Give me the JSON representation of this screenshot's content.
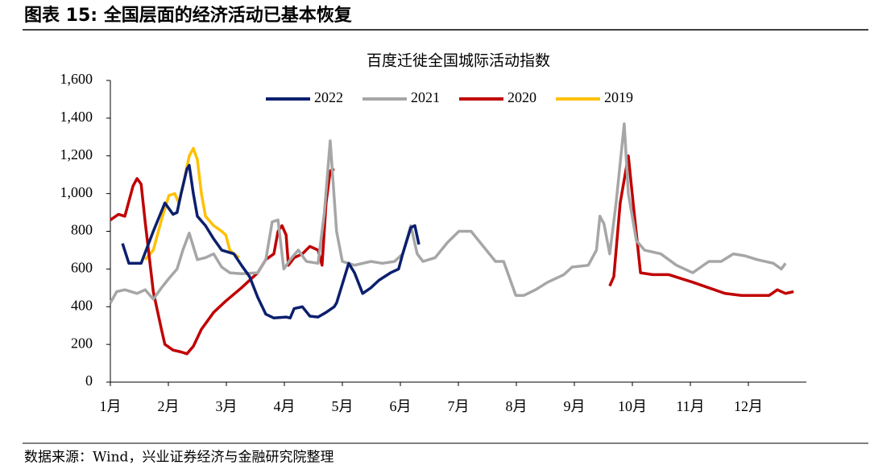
{
  "header": {
    "title": "图表 15:  全国层面的经济活动已基本恢复"
  },
  "footer": {
    "source": "数据来源：Wind，兴业证券经济与金融研究院整理"
  },
  "chart_data": {
    "type": "line",
    "title": "百度迁徙全国城际活动指数",
    "xlim": [
      0,
      12
    ],
    "xticks": [
      {
        "value": 0,
        "label": "1月"
      },
      {
        "value": 1,
        "label": "2月"
      },
      {
        "value": 2,
        "label": "3月"
      },
      {
        "value": 3,
        "label": "4月"
      },
      {
        "value": 4,
        "label": "5月"
      },
      {
        "value": 5,
        "label": "6月"
      },
      {
        "value": 6,
        "label": "7月"
      },
      {
        "value": 7,
        "label": "8月"
      },
      {
        "value": 8,
        "label": "9月"
      },
      {
        "value": 9,
        "label": "10月"
      },
      {
        "value": 10,
        "label": "11月"
      },
      {
        "value": 11,
        "label": "12月"
      }
    ],
    "ylim": [
      0,
      1600
    ],
    "yticks": [
      0,
      200,
      400,
      600,
      800,
      {
        "value": 1000,
        "label": "1,000"
      },
      {
        "value": 1200,
        "label": "1,200"
      },
      {
        "value": 1400,
        "label": "1,400"
      },
      {
        "value": 1600,
        "label": "1,600"
      }
    ],
    "grid": false,
    "legend": "top",
    "series": [
      {
        "name": "2022",
        "color": "#0c1f6e",
        "x": [
          0.21,
          0.32,
          0.53,
          0.74,
          0.94,
          1.08,
          1.15,
          1.22,
          1.32,
          1.36,
          1.43,
          1.5,
          1.64,
          1.78,
          1.92,
          2.13,
          2.26,
          2.4,
          2.54,
          2.68,
          2.82,
          3.03,
          3.1,
          3.17,
          3.31,
          3.44,
          3.58,
          3.72,
          3.86,
          3.9,
          4.0,
          4.11,
          4.21,
          4.35,
          4.49,
          4.63,
          4.83,
          4.97,
          5.04,
          5.18,
          5.25,
          5.32
        ],
        "values": [
          735,
          630,
          630,
          800,
          950,
          890,
          900,
          1000,
          1130,
          1150,
          1000,
          880,
          830,
          760,
          700,
          680,
          620,
          560,
          450,
          360,
          340,
          345,
          340,
          390,
          400,
          350,
          345,
          370,
          400,
          420,
          520,
          630,
          580,
          470,
          500,
          540,
          580,
          600,
          680,
          820,
          830,
          730
        ]
      },
      {
        "name": "2021",
        "color": "#a6a6a6",
        "x": [
          0,
          0.11,
          0.25,
          0.46,
          0.6,
          0.74,
          0.88,
          1.01,
          1.15,
          1.25,
          1.36,
          1.5,
          1.64,
          1.78,
          1.92,
          2.06,
          2.26,
          2.54,
          2.68,
          2.79,
          2.89,
          2.99,
          3.1,
          3.24,
          3.38,
          3.58,
          3.69,
          3.79,
          3.9,
          4.0,
          4.21,
          4.49,
          4.69,
          4.9,
          5.04,
          5.18,
          5.29,
          5.39,
          5.6,
          5.81,
          6.01,
          6.22,
          6.43,
          6.64,
          6.78,
          6.99,
          7.13,
          7.33,
          7.54,
          7.82,
          7.96,
          8.24,
          8.38,
          8.44,
          8.51,
          8.61,
          8.72,
          8.86,
          8.93,
          9.07,
          9.21,
          9.49,
          9.76,
          10.04,
          10.18,
          10.32,
          10.53,
          10.74,
          10.94,
          11.15,
          11.43,
          11.57,
          11.64
        ],
        "values": [
          420,
          480,
          490,
          470,
          490,
          440,
          500,
          550,
          600,
          700,
          790,
          650,
          660,
          680,
          610,
          580,
          575,
          580,
          650,
          850,
          860,
          600,
          650,
          700,
          640,
          630,
          900,
          1280,
          800,
          640,
          620,
          640,
          630,
          640,
          680,
          830,
          680,
          640,
          660,
          740,
          800,
          800,
          720,
          640,
          640,
          460,
          460,
          490,
          530,
          570,
          610,
          620,
          700,
          880,
          840,
          680,
          950,
          1370,
          1000,
          750,
          700,
          680,
          620,
          580,
          610,
          640,
          640,
          680,
          670,
          650,
          630,
          600,
          630
        ]
      },
      {
        "name": "2020",
        "color": "#c00000",
        "x": [
          0,
          0.14,
          0.25,
          0.39,
          0.46,
          0.53,
          0.6,
          0.74,
          0.88,
          0.94,
          1.08,
          1.22,
          1.32,
          1.43,
          1.57,
          1.78,
          1.99,
          2.26,
          2.54,
          2.68,
          2.82,
          2.89,
          2.96,
          3.03,
          3.07,
          3.17,
          3.31,
          3.44,
          3.58,
          3.65,
          3.72,
          3.79,
          3.86,
          6.0,
          8.61,
          8.68,
          8.79,
          8.93,
          9.03,
          9.14,
          9.35,
          9.63,
          9.83,
          10.04,
          10.32,
          10.6,
          10.88,
          11.15,
          11.36,
          11.5,
          11.64,
          11.78
        ],
        "values": [
          860,
          890,
          880,
          1040,
          1080,
          1050,
          850,
          480,
          280,
          200,
          170,
          160,
          150,
          190,
          280,
          370,
          430,
          500,
          580,
          650,
          680,
          800,
          830,
          780,
          620,
          660,
          680,
          720,
          700,
          620,
          950,
          1120,
          1130,
          null,
          510,
          560,
          950,
          1200,
          900,
          580,
          570,
          570,
          550,
          530,
          500,
          470,
          460,
          460,
          460,
          490,
          470,
          480
        ]
      },
      {
        "name": "2019",
        "color": "#ffc000",
        "x": [
          0.6,
          0.74,
          0.88,
          1.01,
          1.11,
          1.18,
          1.26,
          1.36,
          1.43,
          1.5,
          1.57,
          1.64,
          1.78,
          1.92,
          1.99,
          2.06,
          2.13,
          2.22
        ],
        "values": [
          650,
          700,
          860,
          990,
          1000,
          950,
          1050,
          1200,
          1240,
          1180,
          1000,
          880,
          830,
          800,
          780,
          700,
          680,
          660
        ]
      }
    ]
  }
}
